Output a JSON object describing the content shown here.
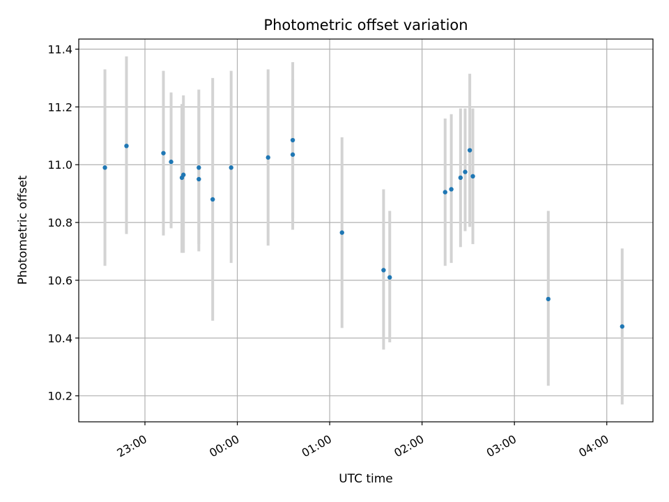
{
  "chart_data": {
    "type": "scatter",
    "title": "Photometric offset variation",
    "xlabel": "UTC time",
    "ylabel": "Photometric offset",
    "x_axis": {
      "range": [
        "22:17",
        "04:30"
      ],
      "ticks": [
        {
          "value": "23:00",
          "label": "23:00"
        },
        {
          "value": "00:00",
          "label": "00:00"
        },
        {
          "value": "01:00",
          "label": "01:00"
        },
        {
          "value": "02:00",
          "label": "02:00"
        },
        {
          "value": "03:00",
          "label": "03:00"
        },
        {
          "value": "04:00",
          "label": "04:00"
        }
      ]
    },
    "y_axis": {
      "range": [
        10.11,
        11.435
      ],
      "ticks": [
        {
          "value": 10.2,
          "label": "10.2"
        },
        {
          "value": 10.4,
          "label": "10.4"
        },
        {
          "value": 10.6,
          "label": "10.6"
        },
        {
          "value": 10.8,
          "label": "10.8"
        },
        {
          "value": 11.0,
          "label": "11.0"
        },
        {
          "value": 11.2,
          "label": "11.2"
        },
        {
          "value": 11.4,
          "label": "11.4"
        }
      ]
    },
    "grid": true,
    "point_color": "#1f77b4",
    "errorbar_color": "#d3d3d3",
    "points": [
      {
        "x": "22:34",
        "y": 10.99,
        "low": 10.65,
        "high": 11.33
      },
      {
        "x": "22:48",
        "y": 11.065,
        "low": 10.76,
        "high": 11.375
      },
      {
        "x": "23:12",
        "y": 11.04,
        "low": 10.755,
        "high": 11.325
      },
      {
        "x": "23:17",
        "y": 11.01,
        "low": 10.78,
        "high": 11.25
      },
      {
        "x": "23:24",
        "y": 10.955,
        "low": 10.695,
        "high": 11.21
      },
      {
        "x": "23:25",
        "y": 10.965,
        "low": 10.695,
        "high": 11.24
      },
      {
        "x": "23:35",
        "y": 10.99,
        "low": 10.725,
        "high": 11.26
      },
      {
        "x": "23:35",
        "y": 10.95,
        "low": 10.7,
        "high": 11.2
      },
      {
        "x": "23:44",
        "y": 10.88,
        "low": 10.46,
        "high": 11.3
      },
      {
        "x": "23:56",
        "y": 10.99,
        "low": 10.66,
        "high": 11.325
      },
      {
        "x": "00:20",
        "y": 11.025,
        "low": 10.72,
        "high": 11.33
      },
      {
        "x": "00:36",
        "y": 11.085,
        "low": 10.815,
        "high": 11.355
      },
      {
        "x": "00:36",
        "y": 11.035,
        "low": 10.775,
        "high": 11.295
      },
      {
        "x": "01:08",
        "y": 10.765,
        "low": 10.435,
        "high": 11.095
      },
      {
        "x": "01:35",
        "y": 10.635,
        "low": 10.36,
        "high": 10.915
      },
      {
        "x": "01:39",
        "y": 10.61,
        "low": 10.385,
        "high": 10.84
      },
      {
        "x": "02:15",
        "y": 10.905,
        "low": 10.65,
        "high": 11.16
      },
      {
        "x": "02:19",
        "y": 10.915,
        "low": 10.66,
        "high": 11.175
      },
      {
        "x": "02:25",
        "y": 10.955,
        "low": 10.715,
        "high": 11.195
      },
      {
        "x": "02:28",
        "y": 10.975,
        "low": 10.77,
        "high": 11.195
      },
      {
        "x": "02:31",
        "y": 11.05,
        "low": 10.785,
        "high": 11.315
      },
      {
        "x": "02:33",
        "y": 10.96,
        "low": 10.725,
        "high": 11.195
      },
      {
        "x": "03:22",
        "y": 10.535,
        "low": 10.235,
        "high": 10.84
      },
      {
        "x": "04:10",
        "y": 10.44,
        "low": 10.17,
        "high": 10.71
      }
    ]
  }
}
